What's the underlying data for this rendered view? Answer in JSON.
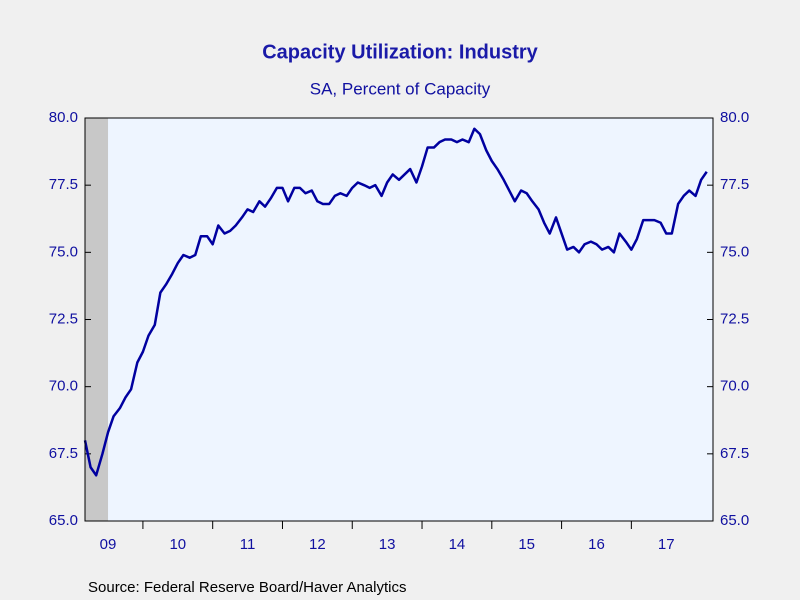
{
  "chart_data": {
    "type": "line",
    "title": "Capacity Utilization: Industry",
    "subtitle": "SA, Percent of Capacity",
    "source": "Source:  Federal Reserve Board/Haver Analytics",
    "xlim": [
      2009.17,
      2018.17
    ],
    "xticks": [
      {
        "value": 2009,
        "label": "09"
      },
      {
        "value": 2010,
        "label": "10"
      },
      {
        "value": 2011,
        "label": "11"
      },
      {
        "value": 2012,
        "label": "12"
      },
      {
        "value": 2013,
        "label": "13"
      },
      {
        "value": 2014,
        "label": "14"
      },
      {
        "value": 2015,
        "label": "15"
      },
      {
        "value": 2016,
        "label": "16"
      },
      {
        "value": 2017,
        "label": "17"
      }
    ],
    "ylim": [
      65,
      80
    ],
    "yticks": [
      {
        "value": 65,
        "label": "65.0"
      },
      {
        "value": 67.5,
        "label": "67.5"
      },
      {
        "value": 70,
        "label": "70.0"
      },
      {
        "value": 72.5,
        "label": "72.5"
      },
      {
        "value": 75,
        "label": "75.0"
      },
      {
        "value": 77.5,
        "label": "77.5"
      },
      {
        "value": 80,
        "label": "80.0"
      }
    ],
    "recession": [
      2009.17,
      2009.5
    ],
    "series": [
      {
        "color": "#0000a0",
        "x": [
          2009.17,
          2009.25,
          2009.33,
          2009.42,
          2009.5,
          2009.58,
          2009.67,
          2009.75,
          2009.83,
          2009.92,
          2010.0,
          2010.08,
          2010.17,
          2010.25,
          2010.33,
          2010.42,
          2010.5,
          2010.58,
          2010.67,
          2010.75,
          2010.83,
          2010.92,
          2011.0,
          2011.08,
          2011.17,
          2011.25,
          2011.33,
          2011.42,
          2011.5,
          2011.58,
          2011.67,
          2011.75,
          2011.83,
          2011.92,
          2012.0,
          2012.08,
          2012.17,
          2012.25,
          2012.33,
          2012.42,
          2012.5,
          2012.58,
          2012.67,
          2012.75,
          2012.83,
          2012.92,
          2013.0,
          2013.08,
          2013.17,
          2013.25,
          2013.33,
          2013.42,
          2013.5,
          2013.58,
          2013.67,
          2013.75,
          2013.83,
          2013.92,
          2014.0,
          2014.08,
          2014.17,
          2014.25,
          2014.33,
          2014.42,
          2014.5,
          2014.58,
          2014.67,
          2014.75,
          2014.83,
          2014.92,
          2015.0,
          2015.08,
          2015.17,
          2015.25,
          2015.33,
          2015.42,
          2015.5,
          2015.58,
          2015.67,
          2015.75,
          2015.83,
          2015.92,
          2016.0,
          2016.08,
          2016.17,
          2016.25,
          2016.33,
          2016.42,
          2016.5,
          2016.58,
          2016.67,
          2016.75,
          2016.83,
          2016.92,
          2017.0,
          2017.08,
          2017.17,
          2017.25,
          2017.33,
          2017.42,
          2017.5,
          2017.58,
          2017.67,
          2017.75,
          2017.83,
          2017.92,
          2018.0,
          2018.08
        ],
        "values": [
          68.0,
          67.0,
          66.7,
          67.5,
          68.3,
          68.9,
          69.2,
          69.6,
          69.9,
          70.9,
          71.3,
          71.9,
          72.3,
          73.5,
          73.8,
          74.2,
          74.6,
          74.9,
          74.8,
          74.9,
          75.6,
          75.6,
          75.3,
          76.0,
          75.7,
          75.8,
          76.0,
          76.3,
          76.6,
          76.5,
          76.9,
          76.7,
          77.0,
          77.4,
          77.4,
          76.9,
          77.4,
          77.4,
          77.2,
          77.3,
          76.9,
          76.8,
          76.8,
          77.1,
          77.2,
          77.1,
          77.4,
          77.6,
          77.5,
          77.4,
          77.5,
          77.1,
          77.6,
          77.9,
          77.7,
          77.9,
          78.1,
          77.6,
          78.2,
          78.9,
          78.9,
          79.1,
          79.2,
          79.2,
          79.1,
          79.2,
          79.1,
          79.6,
          79.4,
          78.8,
          78.4,
          78.1,
          77.7,
          77.3,
          76.9,
          77.3,
          77.2,
          76.9,
          76.6,
          76.1,
          75.7,
          76.3,
          75.7,
          75.1,
          75.2,
          75.0,
          75.3,
          75.4,
          75.3,
          75.1,
          75.2,
          75.0,
          75.7,
          75.4,
          75.1,
          75.5,
          76.2,
          76.2,
          76.2,
          76.1,
          75.7,
          75.7,
          76.8,
          77.1,
          77.3,
          77.1,
          77.7,
          78.0
        ]
      }
    ]
  }
}
